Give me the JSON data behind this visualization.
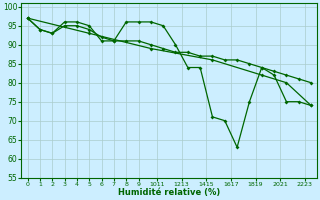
{
  "xlabel": "Humidité relative (%)",
  "background_color": "#cceeff",
  "grid_color": "#aacccc",
  "line_color": "#006600",
  "ylim": [
    55,
    101
  ],
  "xlim": [
    -0.5,
    23.5
  ],
  "yticks": [
    55,
    60,
    65,
    70,
    75,
    80,
    85,
    90,
    95,
    100
  ],
  "xtick_labels": [
    "0",
    "1",
    "2",
    "3",
    "4",
    "5",
    "6",
    "7",
    "8",
    "9",
    "1011",
    "1213",
    "1415",
    "1617",
    "1819",
    "2021",
    "2223"
  ],
  "xtick_positions": [
    0,
    1,
    2,
    3,
    4,
    5,
    6,
    7,
    8,
    9,
    10.5,
    12.5,
    14.5,
    16.5,
    18.5,
    20.5,
    22.5
  ],
  "line1_x": [
    0,
    1,
    2,
    3,
    4,
    5,
    6,
    7,
    8,
    9,
    10,
    11,
    12,
    13,
    14,
    15,
    16,
    17,
    18,
    19,
    20,
    21,
    22,
    23
  ],
  "line1_y": [
    97,
    94,
    93,
    96,
    96,
    95,
    91,
    91,
    96,
    96,
    96,
    95,
    90,
    84,
    84,
    71,
    70,
    63,
    75,
    84,
    82,
    75,
    75,
    74
  ],
  "line2_x": [
    0,
    1,
    2,
    3,
    4,
    5,
    6,
    7,
    8,
    9,
    10,
    11,
    12,
    13,
    14,
    15,
    16,
    17,
    18,
    19,
    20,
    21,
    22,
    23
  ],
  "line2_y": [
    97,
    94,
    93,
    95,
    95,
    94,
    92,
    91,
    91,
    91,
    90,
    89,
    88,
    88,
    87,
    87,
    86,
    86,
    85,
    84,
    83,
    82,
    81,
    80
  ],
  "line3_x": [
    0,
    5,
    10,
    15,
    19,
    21,
    23
  ],
  "line3_y": [
    97,
    93,
    89,
    86,
    82,
    80,
    74
  ]
}
